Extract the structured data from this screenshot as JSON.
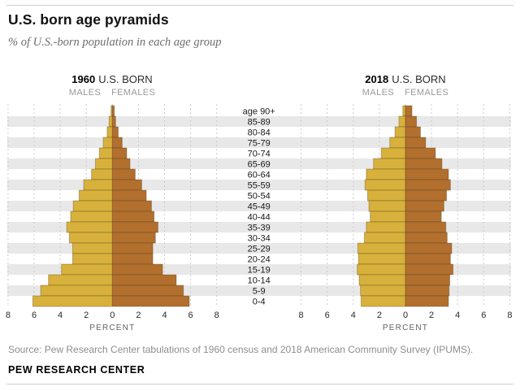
{
  "header": {
    "title": "U.S. born age pyramids",
    "subtitle": "% of U.S.-born population in each age group"
  },
  "footer": {
    "source": "Source: Pew Research Center tabulations of 1960 census and 2018 American Community Survey (IPUMS).",
    "brand": "PEW RESEARCH CENTER"
  },
  "colors": {
    "male_fill": "#d8b13c",
    "female_fill": "#b26f2e",
    "bar_stroke": "rgba(80,60,25,0.35)",
    "stripe": "#e8e8e8",
    "gridline": "#cbcbcb",
    "tick_text": "#2b2b2b",
    "age_text": "#1a1a1a",
    "axis_label_text": "#636363"
  },
  "chart_data": {
    "type": "bar",
    "variant": "population_pyramid_pair",
    "title": "U.S. born age pyramids",
    "subtitle": "% of U.S.-born population in each age group",
    "unit": "percent of U.S.-born population",
    "xlabel": "PERCENT",
    "axis_ticks_abs": [
      8,
      6,
      4,
      2,
      0,
      2,
      4,
      6,
      8
    ],
    "xlim_abs": 8,
    "grid": "dashed vertical gridlines at every 2%",
    "row_shading": "alternating horizontal stripes (85-89, 75-79, 65-69, 55-59, 45-49, 35-39, 25-29, 15-19, 5-9 shaded)",
    "age_groups": [
      "age 90+",
      "85-89",
      "80-84",
      "75-79",
      "70-74",
      "65-69",
      "60-64",
      "55-59",
      "50-54",
      "45-49",
      "40-44",
      "35-39",
      "30-34",
      "25-29",
      "20-24",
      "15-19",
      "10-14",
      "5-9",
      "0-4"
    ],
    "pyramids": [
      {
        "year": "1960",
        "title_suffix": "U.S. BORN",
        "left_label": "MALES",
        "right_label": "FEMALES",
        "males_pct": [
          0.1,
          0.25,
          0.4,
          0.7,
          1.0,
          1.3,
          1.6,
          2.2,
          2.55,
          3.0,
          3.2,
          3.5,
          3.3,
          3.05,
          3.05,
          3.9,
          4.9,
          5.5,
          6.1
        ],
        "females_pct": [
          0.15,
          0.25,
          0.45,
          0.75,
          1.1,
          1.35,
          1.75,
          2.25,
          2.6,
          3.0,
          3.2,
          3.5,
          3.3,
          3.1,
          3.1,
          3.85,
          4.9,
          5.45,
          5.9
        ]
      },
      {
        "year": "2018",
        "title_suffix": "U.S. BORN",
        "left_label": "MALES",
        "right_label": "FEMALES",
        "males_pct": [
          0.2,
          0.5,
          0.8,
          1.2,
          1.85,
          2.45,
          3.0,
          3.1,
          2.9,
          2.8,
          2.7,
          3.0,
          3.15,
          3.65,
          3.6,
          3.7,
          3.55,
          3.45,
          3.4
        ],
        "females_pct": [
          0.5,
          0.85,
          1.15,
          1.55,
          2.3,
          2.8,
          3.3,
          3.45,
          3.15,
          2.95,
          2.75,
          3.1,
          3.2,
          3.55,
          3.45,
          3.65,
          3.4,
          3.35,
          3.3
        ]
      }
    ]
  }
}
